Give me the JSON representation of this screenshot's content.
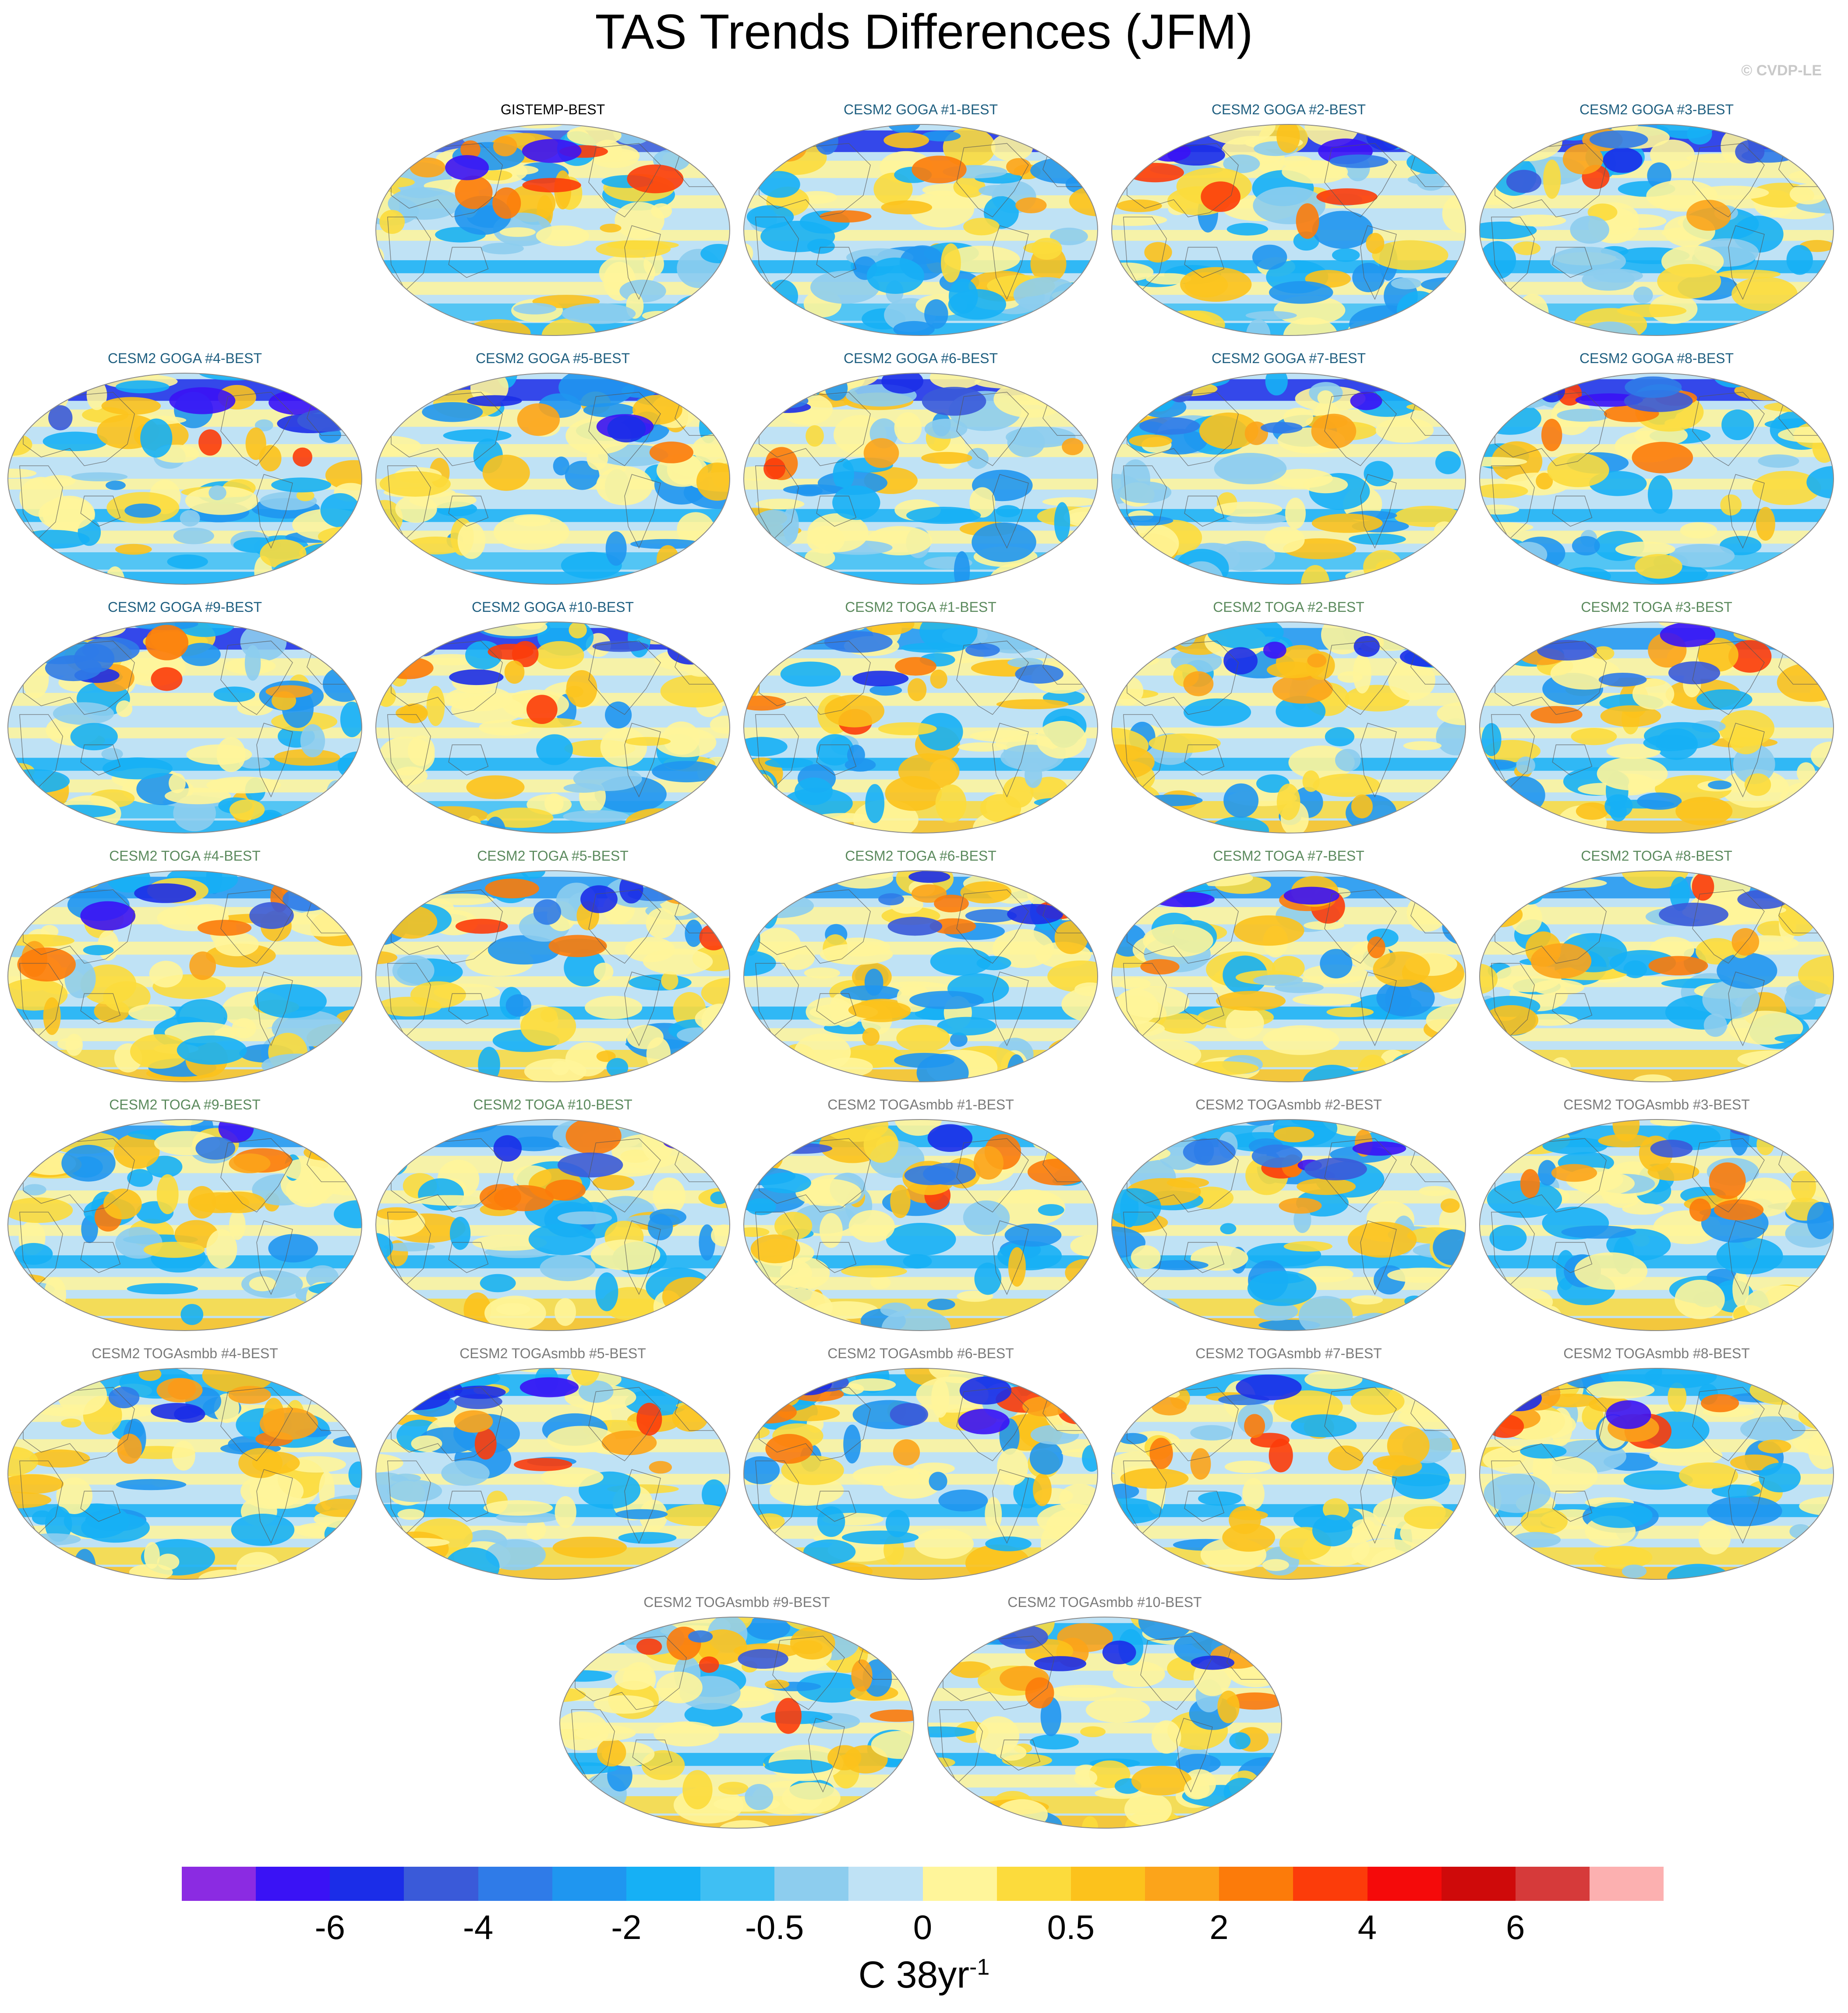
{
  "title": "TAS Trends Differences (JFM)",
  "watermark": "© CVDP-LE",
  "panels": [
    {
      "label": "GISTEMP-BEST",
      "group": 0
    },
    {
      "label": "CESM2 GOGA #1-BEST",
      "group": 1
    },
    {
      "label": "CESM2 GOGA #2-BEST",
      "group": 1
    },
    {
      "label": "CESM2 GOGA #3-BEST",
      "group": 1
    },
    {
      "label": "CESM2 GOGA #4-BEST",
      "group": 1
    },
    {
      "label": "CESM2 GOGA #5-BEST",
      "group": 1
    },
    {
      "label": "CESM2 GOGA #6-BEST",
      "group": 1
    },
    {
      "label": "CESM2 GOGA #7-BEST",
      "group": 1
    },
    {
      "label": "CESM2 GOGA #8-BEST",
      "group": 1
    },
    {
      "label": "CESM2 GOGA #9-BEST",
      "group": 1
    },
    {
      "label": "CESM2 GOGA #10-BEST",
      "group": 1
    },
    {
      "label": "CESM2 TOGA #1-BEST",
      "group": 2
    },
    {
      "label": "CESM2 TOGA #2-BEST",
      "group": 2
    },
    {
      "label": "CESM2 TOGA #3-BEST",
      "group": 2
    },
    {
      "label": "CESM2 TOGA #4-BEST",
      "group": 2
    },
    {
      "label": "CESM2 TOGA #5-BEST",
      "group": 2
    },
    {
      "label": "CESM2 TOGA #6-BEST",
      "group": 2
    },
    {
      "label": "CESM2 TOGA #7-BEST",
      "group": 2
    },
    {
      "label": "CESM2 TOGA #8-BEST",
      "group": 2
    },
    {
      "label": "CESM2 TOGA #9-BEST",
      "group": 2
    },
    {
      "label": "CESM2 TOGA #10-BEST",
      "group": 2
    },
    {
      "label": "CESM2 TOGAsmbb #1-BEST",
      "group": 3
    },
    {
      "label": "CESM2 TOGAsmbb #2-BEST",
      "group": 3
    },
    {
      "label": "CESM2 TOGAsmbb #3-BEST",
      "group": 3
    },
    {
      "label": "CESM2 TOGAsmbb #4-BEST",
      "group": 3
    },
    {
      "label": "CESM2 TOGAsmbb #5-BEST",
      "group": 3
    },
    {
      "label": "CESM2 TOGAsmbb #6-BEST",
      "group": 3
    },
    {
      "label": "CESM2 TOGAsmbb #7-BEST",
      "group": 3
    },
    {
      "label": "CESM2 TOGAsmbb #8-BEST",
      "group": 3
    },
    {
      "label": "CESM2 TOGAsmbb #9-BEST",
      "group": 3
    },
    {
      "label": "CESM2 TOGAsmbb #10-BEST",
      "group": 3
    }
  ],
  "colorbar": {
    "colors": [
      "#8b2be2",
      "#3a12f5",
      "#1b2de8",
      "#3a5ad9",
      "#2f7be8",
      "#1f96f0",
      "#16b0f5",
      "#3fbff3",
      "#8dcdee",
      "#bfe2f5",
      "#fff59a",
      "#fcdb3c",
      "#fcc21c",
      "#fca41a",
      "#fc7b0a",
      "#fc3c0a",
      "#f50a0a",
      "#cf0a0a",
      "#d63a3a",
      "#fcb0b0"
    ],
    "tick_labels": [
      "-6",
      "-4",
      "-2",
      "-0.5",
      "0",
      "0.5",
      "2",
      "4",
      "6"
    ],
    "tick_boundaries": [
      2,
      4,
      6,
      8,
      10,
      12,
      14,
      16,
      18
    ],
    "units": "C 38yr",
    "units_exponent": "-1"
  }
}
